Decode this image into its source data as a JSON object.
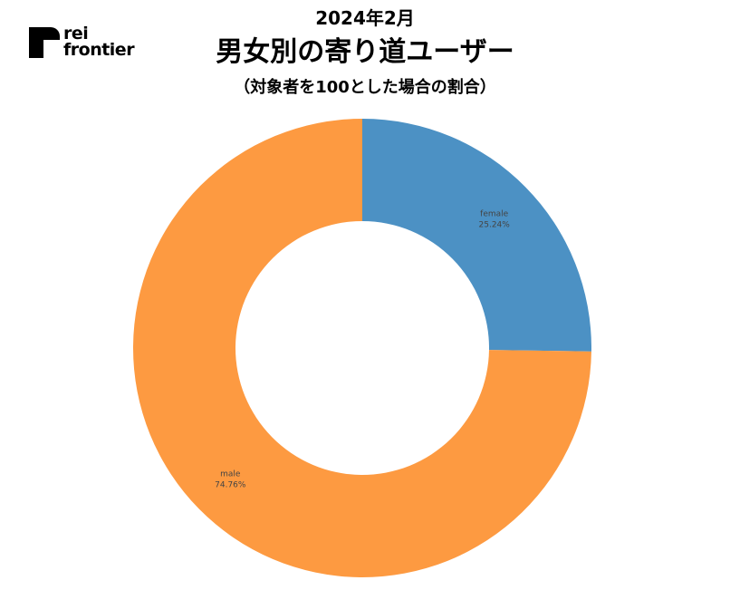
{
  "logo": {
    "line1": "rei",
    "line2": "frontier"
  },
  "header": {
    "date": "2024年2月",
    "title": "男女別の寄り道ユーザー",
    "subtitle": "（対象者を100とした場合の割合）"
  },
  "chart_data": {
    "type": "pie",
    "variant": "donut",
    "title": "男女別の寄り道ユーザー",
    "subtitle": "（対象者を100とした場合の割合）",
    "slices": [
      {
        "label": "female",
        "value": 25.24,
        "display": "25.24%",
        "color": "#4c91c4"
      },
      {
        "label": "male",
        "value": 74.76,
        "display": "74.76%",
        "color": "#fd9a41"
      }
    ]
  }
}
